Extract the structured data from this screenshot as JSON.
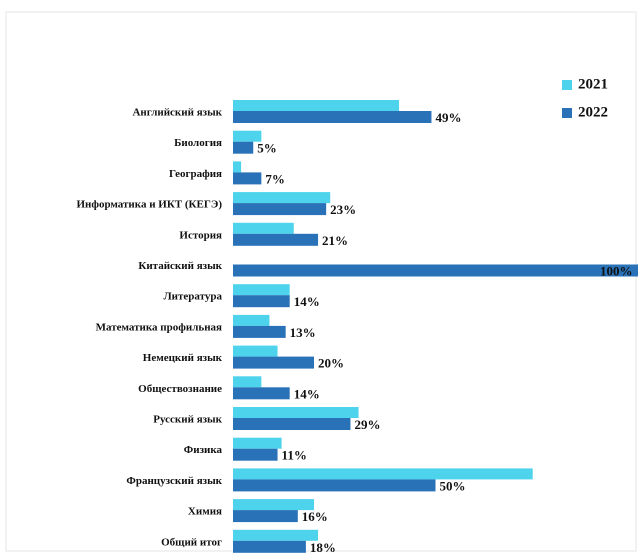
{
  "chart_data": {
    "type": "bar",
    "orientation": "horizontal",
    "categories": [
      "Английский язык",
      "Биология",
      "География",
      "Информатика и ИКТ (КЕГЭ)",
      "История",
      "Китайский язык",
      "Литература",
      "Математика профильная",
      "Немецкий язык",
      "Обществознание",
      "Русский язык",
      "Физика",
      "Французский язык",
      "Химия",
      "Общий итог"
    ],
    "series": [
      {
        "name": "2021",
        "color": "#4dd3ec",
        "values": [
          41,
          7,
          2,
          24,
          15,
          null,
          14,
          9,
          11,
          7,
          31,
          12,
          74,
          20,
          21
        ]
      },
      {
        "name": "2022",
        "color": "#2a72b8",
        "values": [
          49,
          5,
          7,
          23,
          21,
          100,
          14,
          13,
          20,
          14,
          29,
          11,
          50,
          16,
          18
        ],
        "value_labels": [
          "49%",
          "5%",
          "7%",
          "23%",
          "21%",
          "100%",
          "14%",
          "13%",
          "20%",
          "14%",
          "29%",
          "11%",
          "50%",
          "16%",
          "18%"
        ]
      }
    ],
    "xlim": [
      0,
      100
    ],
    "legend": "top-right"
  }
}
